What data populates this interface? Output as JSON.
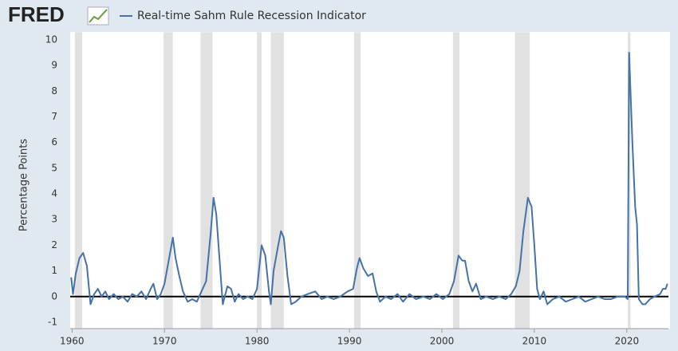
{
  "logo": "FRED",
  "chart_data": {
    "type": "line",
    "title": "Real-time Sahm Rule Recession Indicator",
    "ylabel": "Percentage Points",
    "x": [
      1959.9,
      1960.1,
      1960.4,
      1960.8,
      1961.2,
      1961.6,
      1962.0,
      1962.4,
      1962.8,
      1963.2,
      1963.6,
      1964.0,
      1964.5,
      1965.0,
      1965.5,
      1966.0,
      1966.5,
      1967.0,
      1967.5,
      1968.0,
      1968.5,
      1968.8,
      1969.2,
      1969.6,
      1970.0,
      1970.4,
      1970.9,
      1971.2,
      1971.6,
      1972.0,
      1972.5,
      1973.0,
      1973.5,
      1974.0,
      1974.5,
      1975.0,
      1975.3,
      1975.6,
      1976.0,
      1976.3,
      1976.8,
      1977.2,
      1977.6,
      1978.0,
      1978.5,
      1979.0,
      1979.5,
      1980.0,
      1980.5,
      1980.9,
      1981.3,
      1981.5,
      1981.8,
      1982.3,
      1982.6,
      1982.9,
      1983.3,
      1983.7,
      1984.2,
      1984.8,
      1985.5,
      1986.3,
      1987.0,
      1987.6,
      1988.3,
      1989.0,
      1989.8,
      1990.4,
      1990.8,
      1991.1,
      1991.5,
      1992.0,
      1992.5,
      1992.9,
      1993.3,
      1993.9,
      1994.5,
      1995.2,
      1995.8,
      1996.5,
      1997.2,
      1998.0,
      1998.7,
      1999.4,
      2000.1,
      2000.8,
      2001.3,
      2001.8,
      2002.2,
      2002.5,
      2002.9,
      2003.3,
      2003.7,
      2004.2,
      2004.8,
      2005.5,
      2006.2,
      2006.9,
      2007.5,
      2008.0,
      2008.4,
      2008.8,
      2009.3,
      2009.7,
      2010.0,
      2010.3,
      2010.6,
      2011.0,
      2011.4,
      2012.0,
      2012.7,
      2013.4,
      2014.1,
      2014.8,
      2015.5,
      2016.2,
      2016.9,
      2017.6,
      2018.3,
      2019.0,
      2019.8,
      2020.1,
      2020.25,
      2020.6,
      2020.9,
      2021.1,
      2021.3,
      2021.7,
      2022.0,
      2022.5,
      2023.0,
      2023.6,
      2023.9,
      2024.2,
      2024.4
    ],
    "series": [
      {
        "name": "Real-time Sahm Rule Recession Indicator",
        "color": "#4572a7",
        "values": [
          0.75,
          0.1,
          0.9,
          1.5,
          1.7,
          1.2,
          -0.3,
          0.1,
          0.3,
          0.0,
          0.2,
          -0.1,
          0.1,
          -0.1,
          0.0,
          -0.2,
          0.1,
          0.0,
          0.2,
          -0.1,
          0.3,
          0.5,
          -0.1,
          0.1,
          0.5,
          1.3,
          2.3,
          1.5,
          0.8,
          0.2,
          -0.2,
          -0.1,
          -0.2,
          0.2,
          0.6,
          2.5,
          3.85,
          3.2,
          1.2,
          -0.3,
          0.4,
          0.3,
          -0.2,
          0.1,
          -0.1,
          0.0,
          -0.1,
          0.3,
          2.0,
          1.6,
          0.2,
          -0.3,
          1.0,
          2.0,
          2.55,
          2.3,
          0.8,
          -0.3,
          -0.2,
          0.0,
          0.1,
          0.2,
          -0.1,
          0.0,
          -0.1,
          0.0,
          0.2,
          0.3,
          1.1,
          1.5,
          1.1,
          0.8,
          0.9,
          0.2,
          -0.2,
          0.0,
          -0.1,
          0.1,
          -0.2,
          0.1,
          -0.1,
          0.0,
          -0.1,
          0.1,
          -0.1,
          0.1,
          0.6,
          1.6,
          1.4,
          1.4,
          0.6,
          0.2,
          0.5,
          -0.1,
          0.0,
          -0.1,
          0.0,
          -0.1,
          0.1,
          0.4,
          1.0,
          2.5,
          3.85,
          3.5,
          2.0,
          0.3,
          -0.1,
          0.2,
          -0.3,
          -0.1,
          0.0,
          -0.2,
          -0.1,
          0.0,
          -0.2,
          -0.1,
          0.0,
          -0.1,
          -0.1,
          0.0,
          0.0,
          -0.1,
          9.5,
          6.0,
          3.5,
          2.8,
          -0.1,
          -0.3,
          -0.3,
          -0.1,
          0.0,
          0.1,
          0.3,
          0.3,
          0.5
        ]
      }
    ],
    "recessions": [
      [
        1960.3,
        1961.1
      ],
      [
        1969.9,
        1970.9
      ],
      [
        1973.9,
        1975.2
      ],
      [
        1980.0,
        1980.5
      ],
      [
        1981.5,
        1982.9
      ],
      [
        1990.5,
        1991.2
      ],
      [
        2001.2,
        2001.9
      ],
      [
        2007.9,
        2009.5
      ],
      [
        2020.1,
        2020.4
      ]
    ],
    "xlim": [
      1959.8,
      2024.5
    ],
    "ylim": [
      -1.25,
      10.3
    ],
    "xticks": [
      1960,
      1970,
      1980,
      1990,
      2000,
      2010,
      2020
    ],
    "yticks": [
      -1,
      0,
      1,
      2,
      3,
      4,
      5,
      6,
      7,
      8,
      9,
      10
    ]
  }
}
